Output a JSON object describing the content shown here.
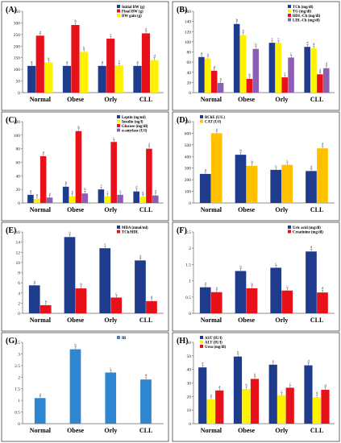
{
  "colors": {
    "navy": "#1F3B8C",
    "red": "#E8111A",
    "yellow": "#FFF200",
    "purple": "#8B5FB3",
    "orange": "#FFC000",
    "lightblue": "#2E86D0"
  },
  "chart_data": [
    {
      "panel_label": "(A)",
      "type": "bar",
      "categories": [
        "Normal",
        "Obese",
        "Orly",
        "CLL"
      ],
      "ylim": [
        0,
        350
      ],
      "yticks": [
        0,
        50,
        100,
        150,
        200,
        250,
        300,
        350
      ],
      "legend": "top-right",
      "series": [
        {
          "name": "Initial BW (g)",
          "color": "navy",
          "values": [
            115,
            115,
            115,
            115
          ],
          "labels": [
            "a",
            "a",
            "a",
            "a"
          ]
        },
        {
          "name": "Final BW (g)",
          "color": "red",
          "values": [
            245,
            291,
            232,
            255
          ],
          "labels": [
            "a",
            "b",
            "c",
            "d"
          ]
        },
        {
          "name": "BW gain (g)",
          "color": "yellow",
          "values": [
            130,
            175,
            117,
            140
          ],
          "labels": [
            "a",
            "b",
            "c",
            "d"
          ]
        }
      ]
    },
    {
      "panel_label": "(B)",
      "type": "bar",
      "categories": [
        "Normal",
        "Obese",
        "Orly",
        "CLL"
      ],
      "ylim": [
        0,
        160
      ],
      "yticks": [
        0,
        20,
        40,
        60,
        80,
        100,
        120,
        140,
        160
      ],
      "legend": "top-right",
      "series": [
        {
          "name": "TCh (mg/dl)",
          "color": "navy",
          "values": [
            70,
            135,
            98,
            90
          ],
          "labels": [
            "a",
            "b",
            "c",
            "d"
          ]
        },
        {
          "name": "TG (mg/dl)",
          "color": "yellow",
          "values": [
            67,
            113,
            98,
            87
          ],
          "labels": [
            "a",
            "b",
            "c",
            "d"
          ]
        },
        {
          "name": "HDL-Ch (mg/dl)",
          "color": "red",
          "values": [
            43,
            27,
            30,
            36
          ],
          "labels": [
            "a",
            "b",
            "c",
            "d"
          ]
        },
        {
          "name": "LDL-Ch (mg/dl)",
          "color": "purple",
          "values": [
            19,
            86,
            69,
            48
          ],
          "labels": [
            "a",
            "b",
            "c",
            "d"
          ]
        }
      ]
    },
    {
      "panel_label": "(C)",
      "type": "bar",
      "categories": [
        "Normal",
        "Obese",
        "Orly",
        "CLL"
      ],
      "ylim": [
        0,
        120
      ],
      "yticks": [
        0,
        20,
        40,
        60,
        80,
        100,
        120
      ],
      "legend": "top-right",
      "series": [
        {
          "name": "Leptin (ng/ml)",
          "color": "navy",
          "values": [
            12,
            24,
            20,
            17
          ],
          "labels": [
            "a",
            "b",
            "c",
            "d"
          ]
        },
        {
          "name": "Insulin (ng/l)",
          "color": "yellow",
          "values": [
            6,
            10,
            10,
            9
          ],
          "labels": [
            "a",
            "b",
            "c",
            "d"
          ]
        },
        {
          "name": "Glucose (mg/dl)",
          "color": "red",
          "values": [
            69,
            106,
            90,
            80
          ],
          "labels": [
            "a",
            "b",
            "c",
            "d"
          ]
        },
        {
          "name": "α-amylase (U/l)",
          "color": "purple",
          "values": [
            8,
            14,
            12,
            11
          ],
          "labels": [
            "a",
            "b",
            "c",
            "d"
          ]
        }
      ]
    },
    {
      "panel_label": "(D)",
      "type": "bar",
      "categories": [
        "Normal",
        "Obese",
        "Orly",
        "CLL"
      ],
      "ylim": [
        0,
        700
      ],
      "yticks": [
        0,
        100,
        200,
        300,
        400,
        500,
        600,
        700
      ],
      "legend": "top-left",
      "series": [
        {
          "name": "BChE (U/L)",
          "color": "navy",
          "values": [
            250,
            415,
            285,
            275
          ],
          "labels": [
            "a",
            "b",
            "c",
            "d"
          ]
        },
        {
          "name": "CAT (U/l)",
          "color": "orange",
          "values": [
            600,
            320,
            328,
            470
          ],
          "labels": [
            "a",
            "b",
            "c",
            "d"
          ]
        }
      ]
    },
    {
      "panel_label": "(E)",
      "type": "bar",
      "categories": [
        "Normal",
        "Obese",
        "Orly",
        "CLL"
      ],
      "ylim": [
        0,
        16
      ],
      "yticks": [
        0,
        2,
        4,
        6,
        8,
        10,
        12,
        14,
        16
      ],
      "legend": "top-right",
      "series": [
        {
          "name": "MDA (nmol/ml)",
          "color": "navy",
          "values": [
            5.5,
            15.0,
            12.8,
            10.4
          ],
          "labels": [
            "a",
            "b",
            "c",
            "d"
          ]
        },
        {
          "name": "TCh/HDL",
          "color": "red",
          "values": [
            1.6,
            4.9,
            3.1,
            2.4
          ],
          "labels": [
            "a",
            "b",
            "c",
            "d"
          ]
        }
      ]
    },
    {
      "panel_label": "(F)",
      "type": "bar",
      "categories": [
        "Normal",
        "Obese",
        "Orly",
        "CLL"
      ],
      "ylim": [
        0,
        2.5
      ],
      "yticks": [
        0,
        0.5,
        1,
        1.5,
        2,
        2.5
      ],
      "legend": "top-right",
      "series": [
        {
          "name": "Uric acid (mg/dl)",
          "color": "navy",
          "values": [
            0.8,
            1.3,
            1.4,
            1.9
          ],
          "labels": [
            "a",
            "b",
            "c",
            "d"
          ]
        },
        {
          "name": "Creatinine (mg/dl)",
          "color": "red",
          "values": [
            0.65,
            0.77,
            0.7,
            0.64
          ],
          "labels": [
            "a",
            "b",
            "c",
            "d"
          ]
        }
      ]
    },
    {
      "panel_label": "(G)",
      "type": "bar",
      "categories": [
        "Normal",
        "Obese",
        "Orly",
        "CLL"
      ],
      "ylim": [
        0,
        3.5
      ],
      "yticks": [
        0,
        0.5,
        1,
        1.5,
        2,
        2.5,
        3,
        3.5
      ],
      "legend": "top-right",
      "series": [
        {
          "name": "IR",
          "color": "lightblue",
          "values": [
            1.1,
            3.2,
            2.2,
            1.9
          ],
          "labels": [
            "a",
            "b",
            "c",
            "d"
          ]
        }
      ]
    },
    {
      "panel_label": "(H)",
      "type": "bar",
      "categories": [
        "Normal",
        "Obese",
        "Orly",
        "CLL"
      ],
      "ylim": [
        0,
        60
      ],
      "yticks": [
        0,
        10,
        20,
        30,
        40,
        50,
        60
      ],
      "legend": "top-left",
      "series": [
        {
          "name": "AST (IU/l)",
          "color": "navy",
          "values": [
            41.5,
            49.5,
            43.5,
            43.0
          ],
          "labels": [
            "a",
            "b",
            "c",
            "d"
          ]
        },
        {
          "name": "ALT (IU/l)",
          "color": "yellow",
          "values": [
            18.0,
            25.5,
            21.0,
            19.5
          ],
          "labels": [
            "a",
            "b",
            "c",
            "d"
          ]
        },
        {
          "name": "Urea (mg/dl)",
          "color": "red",
          "values": [
            24.5,
            33.0,
            26.5,
            25.0
          ],
          "labels": [
            "a",
            "b",
            "c",
            "d"
          ]
        }
      ]
    }
  ]
}
